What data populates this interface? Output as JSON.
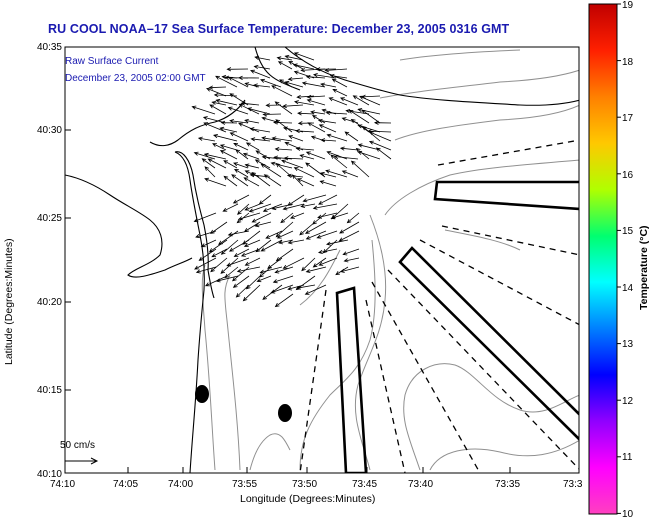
{
  "title": "RU COOL   NOAA–17  Sea Surface Temperature:  December 23, 2005 0316 GMT",
  "current_legend": {
    "line1": "Raw Surface Current",
    "line2": "December 23, 2005 02:00 GMT"
  },
  "scale_label": "50 cm/s",
  "x_axis": {
    "label": "Longitude (Degrees:Minutes)",
    "ticks": [
      "74:10",
      "74:05",
      "74:00",
      "73:55",
      "73:50",
      "73:45",
      "73:40",
      "73:35",
      "73:3"
    ]
  },
  "y_axis": {
    "label": "Latitude (Degrees:Minutes)",
    "ticks": [
      "40:35",
      "40:30",
      "40:25",
      "40:20",
      "40:15",
      "40:10"
    ]
  },
  "colorbar": {
    "label": "Temperature (°C)",
    "ticks": [
      "19",
      "18",
      "17",
      "16",
      "15",
      "14",
      "13",
      "12",
      "11",
      "10"
    ],
    "colors": [
      "#c00000",
      "#ff2000",
      "#ff8000",
      "#ffc800",
      "#b0ff00",
      "#00ff70",
      "#00ffff",
      "#0080ff",
      "#0000ff",
      "#9000ff",
      "#ff00ff",
      "#ff40c0"
    ]
  },
  "colors": {
    "title": "#1a1ab0",
    "coast": "#000000",
    "contour": "#909090"
  }
}
